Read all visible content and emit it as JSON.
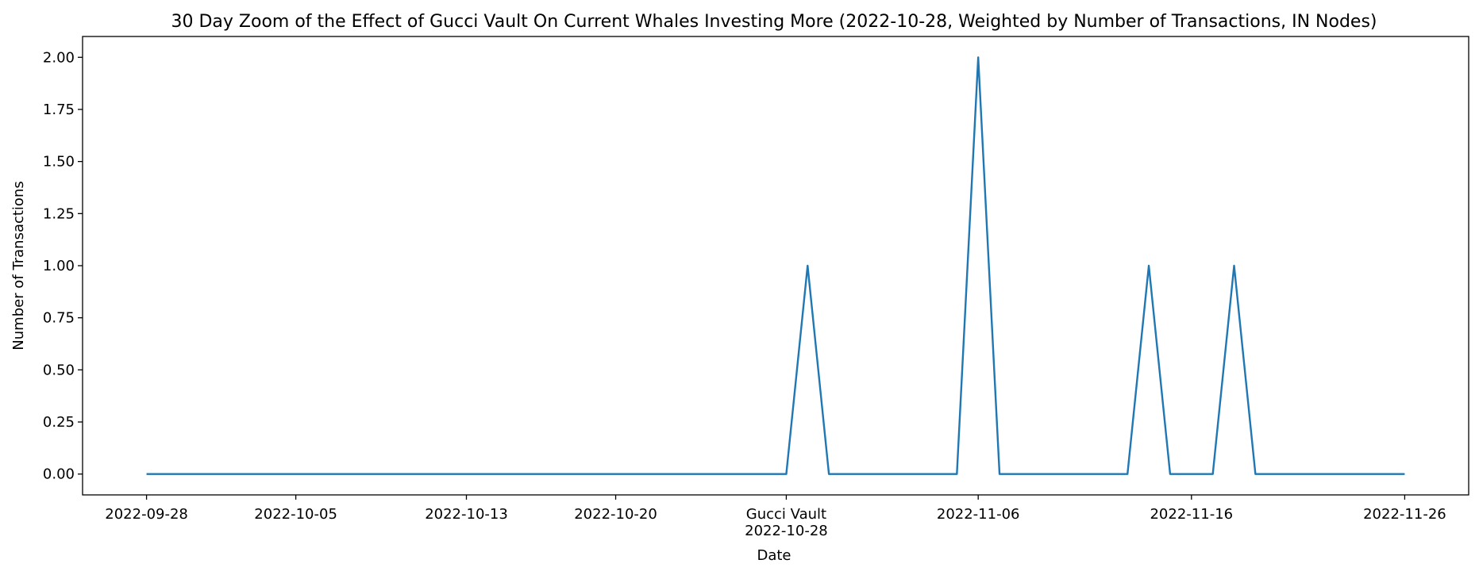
{
  "chart_data": {
    "type": "line",
    "title": "30 Day Zoom of the Effect of Gucci Vault On Current Whales Investing More (2022-10-28, Weighted by Number of Transactions, IN Nodes)",
    "xlabel": "Date",
    "ylabel": "Number of Transactions",
    "xlim": [
      "2022-09-25",
      "2022-11-29"
    ],
    "ylim": [
      -0.1,
      2.1
    ],
    "grid": false,
    "legend": "none",
    "yticks": [
      0.0,
      0.25,
      0.5,
      0.75,
      1.0,
      1.25,
      1.5,
      1.75,
      2.0
    ],
    "ytick_labels": [
      "0.00",
      "0.25",
      "0.50",
      "0.75",
      "1.00",
      "1.25",
      "1.50",
      "1.75",
      "2.00"
    ],
    "xticks": [
      {
        "date": "2022-09-28",
        "label": "2022-09-28"
      },
      {
        "date": "2022-10-05",
        "label": "2022-10-05"
      },
      {
        "date": "2022-10-13",
        "label": "2022-10-13"
      },
      {
        "date": "2022-10-20",
        "label": "2022-10-20"
      },
      {
        "date": "2022-10-28",
        "label": "Gucci Vault\n2022-10-28"
      },
      {
        "date": "2022-11-06",
        "label": "2022-11-06"
      },
      {
        "date": "2022-11-16",
        "label": "2022-11-16"
      },
      {
        "date": "2022-11-26",
        "label": "2022-11-26"
      }
    ],
    "series": [
      {
        "color": "#1f77b4",
        "points": [
          {
            "x": "2022-09-28",
            "y": 0
          },
          {
            "x": "2022-10-28",
            "y": 0
          },
          {
            "x": "2022-10-29",
            "y": 1
          },
          {
            "x": "2022-10-30",
            "y": 0
          },
          {
            "x": "2022-11-05",
            "y": 0
          },
          {
            "x": "2022-11-06",
            "y": 2
          },
          {
            "x": "2022-11-07",
            "y": 0
          },
          {
            "x": "2022-11-13",
            "y": 0
          },
          {
            "x": "2022-11-14",
            "y": 1
          },
          {
            "x": "2022-11-15",
            "y": 0
          },
          {
            "x": "2022-11-17",
            "y": 0
          },
          {
            "x": "2022-11-18",
            "y": 1
          },
          {
            "x": "2022-11-19",
            "y": 0
          },
          {
            "x": "2022-11-26",
            "y": 0
          }
        ]
      }
    ]
  }
}
